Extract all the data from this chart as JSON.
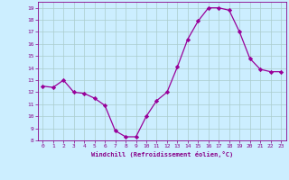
{
  "x": [
    0,
    1,
    2,
    3,
    4,
    5,
    6,
    7,
    8,
    9,
    10,
    11,
    12,
    13,
    14,
    15,
    16,
    17,
    18,
    19,
    20,
    21,
    22,
    23
  ],
  "y": [
    12.5,
    12.4,
    13.0,
    12.0,
    11.9,
    11.5,
    10.9,
    8.8,
    8.3,
    8.3,
    10.0,
    11.3,
    12.0,
    14.1,
    16.4,
    17.9,
    19.0,
    19.0,
    18.8,
    17.0,
    14.8,
    13.9,
    13.7,
    13.7
  ],
  "line_color": "#990099",
  "marker": "D",
  "marker_size": 2.2,
  "bg_color": "#cceeff",
  "grid_color": "#aacccc",
  "xlabel": "Windchill (Refroidissement éolien,°C)",
  "xlabel_color": "#880088",
  "tick_color": "#880088",
  "ylim": [
    8,
    19.5
  ],
  "xlim": [
    -0.5,
    23.5
  ],
  "yticks": [
    8,
    9,
    10,
    11,
    12,
    13,
    14,
    15,
    16,
    17,
    18,
    19
  ],
  "xticks": [
    0,
    1,
    2,
    3,
    4,
    5,
    6,
    7,
    8,
    9,
    10,
    11,
    12,
    13,
    14,
    15,
    16,
    17,
    18,
    19,
    20,
    21,
    22,
    23
  ],
  "spine_color": "#880088"
}
